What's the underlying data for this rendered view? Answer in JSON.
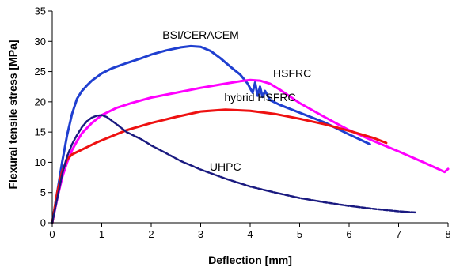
{
  "chart_data": {
    "type": "line",
    "xlabel": "Deflection [mm]",
    "ylabel": "Flexural tensile stress [MPa]",
    "xlim": [
      0,
      8
    ],
    "ylim": [
      0,
      35
    ],
    "xticks": [
      0,
      1,
      2,
      3,
      4,
      5,
      6,
      7,
      8
    ],
    "yticks": [
      0,
      5,
      10,
      15,
      20,
      25,
      30,
      35
    ],
    "grid": false,
    "legend": "none (inline annotations)",
    "series": [
      {
        "name": "BSI/CERACEM",
        "color": "#1f3fd0",
        "dash": "solid",
        "x": [
          0,
          0.1,
          0.2,
          0.3,
          0.4,
          0.5,
          0.6,
          0.7,
          0.8,
          1.0,
          1.2,
          1.5,
          1.8,
          2.0,
          2.3,
          2.6,
          2.8,
          3.0,
          3.2,
          3.4,
          3.6,
          3.8,
          3.95,
          4.05,
          4.1,
          4.15,
          4.2,
          4.25,
          4.3,
          4.4,
          4.6,
          5.0,
          5.5,
          6.0,
          6.42
        ],
        "y": [
          0,
          5,
          10,
          14.5,
          18,
          20.5,
          21.8,
          22.7,
          23.5,
          24.7,
          25.5,
          26.4,
          27.2,
          27.8,
          28.5,
          29.0,
          29.2,
          29.1,
          28.4,
          27.2,
          25.8,
          24.5,
          23.0,
          21.5,
          23.2,
          21.0,
          22.5,
          20.8,
          21.8,
          20.3,
          19.5,
          18.2,
          16.6,
          14.6,
          13.0
        ]
      },
      {
        "name": "HSFRC",
        "color": "#ff00ff",
        "dash": "solid",
        "x": [
          0,
          0.1,
          0.2,
          0.3,
          0.4,
          0.5,
          0.6,
          0.8,
          1.0,
          1.3,
          1.6,
          2.0,
          2.5,
          3.0,
          3.5,
          3.8,
          4.0,
          4.2,
          4.4,
          4.6,
          5.0,
          5.5,
          6.0,
          6.5,
          7.0,
          7.5,
          7.8,
          7.93,
          8.0
        ],
        "y": [
          0,
          4,
          7.5,
          10,
          12,
          13.5,
          14.8,
          16.5,
          17.8,
          19.0,
          19.8,
          20.7,
          21.5,
          22.3,
          23.0,
          23.4,
          23.6,
          23.5,
          23.0,
          22.0,
          19.8,
          17.5,
          15.3,
          13.5,
          11.8,
          10.0,
          8.9,
          8.4,
          8.9
        ]
      },
      {
        "name": "hybrid HSFRC",
        "color": "#ee1111",
        "dash": "solid",
        "x": [
          0,
          0.1,
          0.2,
          0.3,
          0.4,
          0.5,
          0.7,
          0.9,
          1.2,
          1.5,
          2.0,
          2.5,
          3.0,
          3.5,
          4.0,
          4.5,
          5.0,
          5.5,
          6.0,
          6.5,
          6.75
        ],
        "y": [
          0,
          5,
          8.5,
          10.5,
          11.3,
          11.7,
          12.5,
          13.3,
          14.3,
          15.3,
          16.5,
          17.5,
          18.4,
          18.7,
          18.5,
          18.0,
          17.2,
          16.3,
          15.2,
          14.0,
          13.2
        ]
      },
      {
        "name": "UHPC",
        "color": "#1a1a80",
        "dash": "dashed",
        "x": [
          0,
          0.1,
          0.2,
          0.3,
          0.4,
          0.5,
          0.6,
          0.7,
          0.8,
          0.9,
          1.0,
          1.1,
          1.3,
          1.5,
          1.8,
          2.0,
          2.3,
          2.6,
          3.0,
          3.5,
          4.0,
          4.5,
          5.0,
          5.5,
          6.0,
          6.5,
          7.0,
          7.35
        ],
        "y": [
          0,
          4,
          8,
          11,
          13,
          14.5,
          15.8,
          16.8,
          17.4,
          17.7,
          17.8,
          17.5,
          16.3,
          15.0,
          13.8,
          12.8,
          11.5,
          10.2,
          8.8,
          7.3,
          6.0,
          5.0,
          4.1,
          3.4,
          2.8,
          2.3,
          1.9,
          1.7
        ]
      }
    ],
    "annotations": [
      {
        "text": "BSI/CERACEM",
        "x": 3.0,
        "y": 30.4
      },
      {
        "text": "HSFRC",
        "x": 4.85,
        "y": 24.1
      },
      {
        "text": "hybrid HSFRC",
        "x": 4.2,
        "y": 20.1
      },
      {
        "text": "UHPC",
        "x": 3.5,
        "y": 8.6
      }
    ]
  }
}
